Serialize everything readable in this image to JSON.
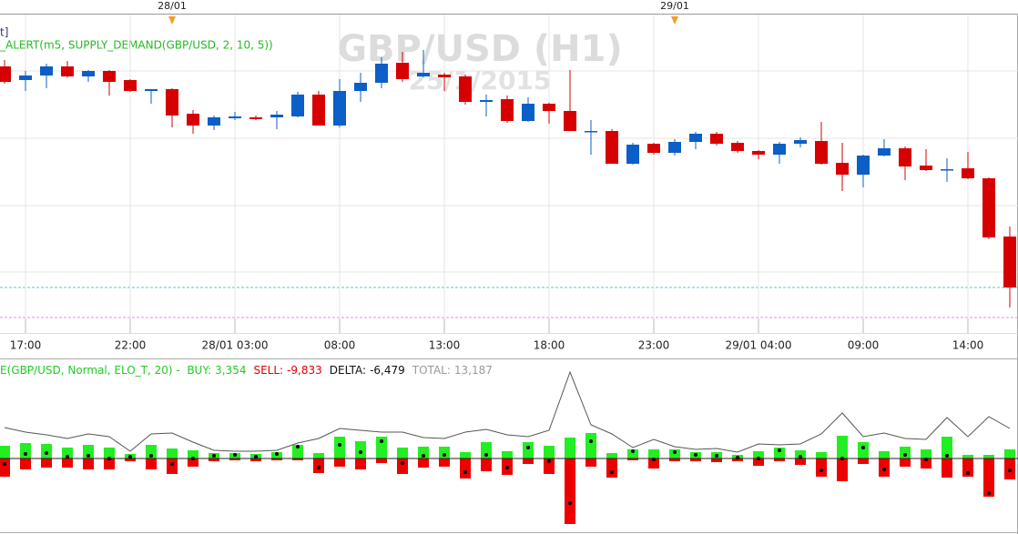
{
  "chart_data": [
    {
      "type": "candlestick",
      "title": "GBP/USD (H1)",
      "subtitle": "25/1/2015",
      "annotations": [
        "t]",
        "_ALERT(m5, SUPPLY_DEMAND(GBP/USD, 2, 10, 5))"
      ],
      "categories": [
        null,
        "17:00",
        null,
        null,
        null,
        null,
        "22:00",
        null,
        null,
        null,
        null,
        "28/01 03:00",
        null,
        null,
        null,
        null,
        "08:00",
        null,
        null,
        null,
        null,
        "13:00",
        null,
        null,
        null,
        null,
        "18:00",
        null,
        null,
        null,
        null,
        "23:00",
        null,
        null,
        null,
        null,
        "29/01 04:00",
        null,
        null,
        null,
        null,
        "09:00",
        null,
        null,
        null,
        null,
        "14:00",
        null,
        null
      ],
      "day_categories": [
        null,
        null,
        null,
        null,
        null,
        null,
        null,
        null,
        "28/01",
        null,
        null,
        null,
        null,
        null,
        null,
        null,
        null,
        null,
        null,
        null,
        null,
        null,
        null,
        null,
        null,
        null,
        null,
        null,
        null,
        null,
        null,
        null,
        "29/01",
        null,
        null,
        null,
        null,
        null,
        null,
        null,
        null,
        null,
        null,
        null,
        null,
        null,
        null,
        null,
        null
      ],
      "open": [
        277,
        262,
        267,
        277,
        266,
        272,
        262,
        250,
        252,
        225,
        212,
        220,
        221,
        221,
        222,
        246,
        212,
        250,
        259,
        281,
        266,
        268,
        266,
        238,
        241,
        217,
        236,
        228,
        205,
        206,
        170,
        192,
        182,
        194,
        203,
        193,
        184,
        180,
        192,
        195,
        171,
        158,
        179,
        187,
        168,
        163,
        165,
        154,
        90
      ],
      "high": [
        284,
        272,
        280,
        283,
        273,
        273,
        263,
        252,
        253,
        229,
        223,
        227,
        223,
        228,
        249,
        250,
        263,
        270,
        287,
        293,
        295,
        270,
        268,
        246,
        245,
        243,
        237,
        273,
        218,
        208,
        193,
        193,
        197,
        205,
        205,
        195,
        185,
        194,
        199,
        216,
        193,
        180,
        197,
        189,
        186,
        176,
        183,
        155,
        101
      ],
      "low": [
        258,
        250,
        253,
        265,
        260,
        245,
        249,
        236,
        210,
        203,
        207,
        218,
        218,
        208,
        221,
        212,
        210,
        238,
        253,
        260,
        265,
        250,
        235,
        222,
        215,
        216,
        214,
        206,
        180,
        170,
        169,
        180,
        179,
        186,
        190,
        182,
        175,
        170,
        188,
        169,
        140,
        144,
        178,
        152,
        162,
        150,
        153,
        87,
        12
      ],
      "close": [
        260,
        267,
        277,
        266,
        272,
        260,
        250,
        252,
        223,
        212,
        221,
        222,
        219,
        224,
        246,
        212,
        250,
        259,
        280,
        263,
        270,
        265,
        238,
        240,
        217,
        236,
        228,
        206,
        206,
        170,
        191,
        182,
        194,
        203,
        192,
        184,
        180,
        192,
        196,
        170,
        158,
        179,
        187,
        167,
        163,
        164,
        154,
        89,
        34
      ],
      "up_color": "#0b5fc6",
      "down_color": "#d60000",
      "ylim": [
        0,
        320
      ],
      "ygrid": [
        51,
        124,
        198,
        272
      ],
      "grid": true,
      "hlines": [
        {
          "value": 34,
          "color": "#55c4d0"
        },
        {
          "value": 1,
          "color": "#e090e0"
        }
      ],
      "day_marker_color": "#f0a020"
    },
    {
      "type": "bar",
      "title": "E(GBP/USD, Normal, ELO_T, 20) -",
      "series": [
        {
          "name": "BUY:",
          "summary": 3354,
          "summary_label": "3,354",
          "color": "#22ee22",
          "label_color": "#22cc22",
          "values": [
            14,
            17,
            16,
            12,
            15,
            12,
            5,
            15,
            11,
            9,
            6,
            6,
            5,
            7,
            15,
            6,
            24,
            19,
            24,
            12,
            13,
            13,
            7,
            18,
            8,
            18,
            14,
            23,
            28,
            6,
            10,
            10,
            10,
            7,
            7,
            4,
            8,
            12,
            9,
            7,
            25,
            18,
            8,
            13,
            10,
            24,
            4,
            4,
            10
          ]
        },
        {
          "name": "SELL:",
          "summary": -9833,
          "summary_label": "-9,833",
          "color": "#ee0000",
          "label_color": "#dd0000",
          "values": [
            -20,
            -12,
            -10,
            -10,
            -12,
            -12,
            -3,
            -12,
            -17,
            -9,
            -3,
            -2,
            -3,
            -2,
            -2,
            -16,
            -9,
            -12,
            -5,
            -17,
            -10,
            -9,
            -22,
            -14,
            -18,
            -6,
            -17,
            -72,
            -9,
            -21,
            -2,
            -11,
            -3,
            -3,
            -4,
            -3,
            -8,
            -3,
            -7,
            -20,
            -25,
            -6,
            -20,
            -9,
            -11,
            -21,
            -20,
            -42,
            -23
          ]
        },
        {
          "name": "DELTA:",
          "summary": -6479,
          "summary_label": "-6,479",
          "color": "#000000",
          "label_color": "#111111",
          "values": [
            -6,
            5,
            6,
            2,
            3,
            0,
            2,
            3,
            -6,
            0,
            3,
            4,
            2,
            5,
            13,
            -10,
            15,
            7,
            19,
            -5,
            3,
            4,
            -15,
            4,
            -10,
            12,
            -3,
            -49,
            19,
            -15,
            8,
            -1,
            7,
            4,
            3,
            1,
            0,
            9,
            2,
            -13,
            0,
            12,
            -12,
            4,
            -1,
            3,
            -16,
            -38,
            -13
          ]
        },
        {
          "name": "TOTAL:",
          "summary": 13187,
          "summary_label": "13,187",
          "color": "#555555",
          "label_color": "#999999",
          "values": [
            34,
            29,
            26,
            22,
            27,
            24,
            8,
            27,
            28,
            18,
            9,
            8,
            8,
            9,
            17,
            22,
            33,
            31,
            29,
            29,
            23,
            22,
            29,
            32,
            26,
            24,
            31,
            95,
            37,
            27,
            12,
            21,
            13,
            10,
            11,
            7,
            16,
            15,
            16,
            27,
            50,
            24,
            28,
            22,
            21,
            45,
            24,
            46,
            33
          ]
        }
      ],
      "ylim": [
        -80,
        100
      ]
    }
  ]
}
